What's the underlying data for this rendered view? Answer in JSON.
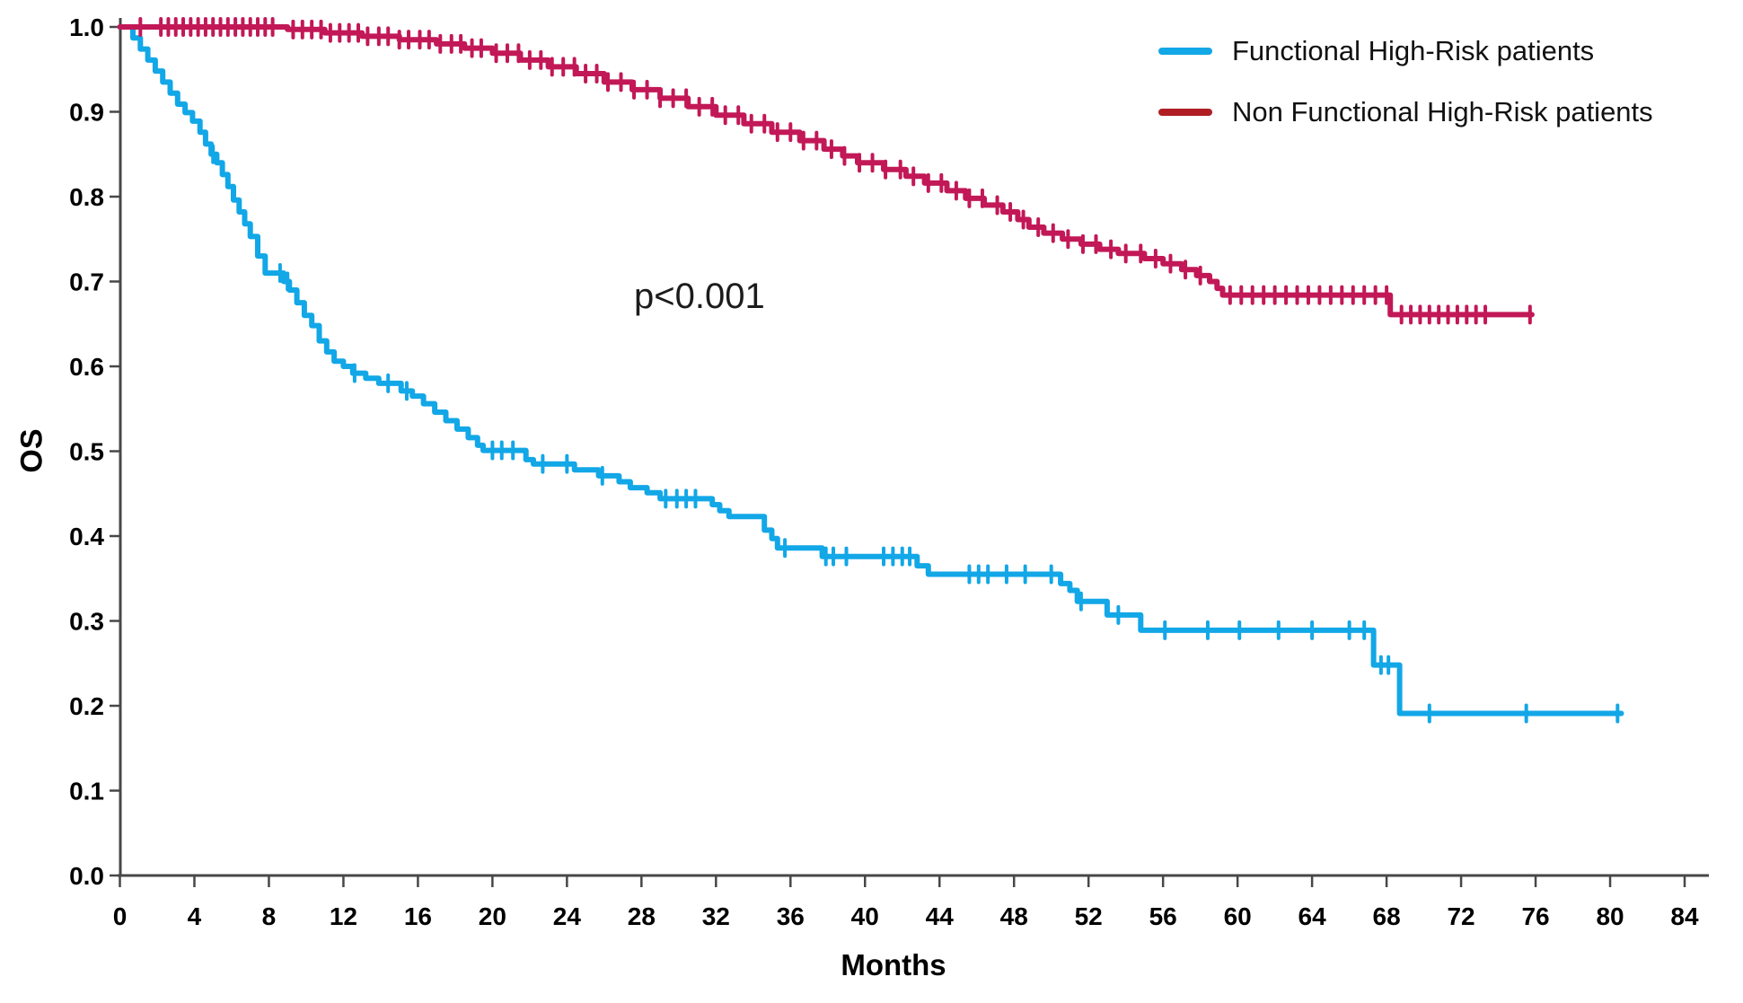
{
  "figure": {
    "background": "#ffffff",
    "p_value_annotation": "p<0.001"
  },
  "axes": {
    "x_label": "Months",
    "y_label": "OS"
  },
  "legend": {
    "items": [
      {
        "label": "Functional High-Risk patients",
        "color": "#12A7E7"
      },
      {
        "label": "Non Functional High-Risk patients",
        "color": "#B01E23"
      }
    ]
  },
  "chart_data": {
    "type": "line",
    "subtype": "kaplan-meier-step",
    "title": "",
    "xlabel": "Months",
    "ylabel": "OS",
    "xlim": [
      0,
      84
    ],
    "ylim": [
      0.0,
      1.0
    ],
    "grid": false,
    "legend_position": "top-right",
    "x_ticks": [
      0,
      4,
      8,
      12,
      16,
      20,
      24,
      28,
      32,
      36,
      40,
      44,
      48,
      52,
      56,
      60,
      64,
      68,
      72,
      76,
      80,
      84
    ],
    "y_tick_labels": [
      "0.0",
      "0.1",
      "0.2",
      "0.3",
      "0.4",
      "0.5",
      "0.6",
      "0.7",
      "0.8",
      "0.9",
      "1.0"
    ],
    "annotations": [
      {
        "text": "p<0.001",
        "x_month": 27.5,
        "y_value": 0.69
      }
    ],
    "series": [
      {
        "name": "Functional High-Risk patients",
        "color": "#12A7E7",
        "step_points": [
          [
            0,
            1.0
          ],
          [
            0.7,
            0.987
          ],
          [
            1.1,
            0.974
          ],
          [
            1.5,
            0.961
          ],
          [
            1.9,
            0.948
          ],
          [
            2.3,
            0.935
          ],
          [
            2.7,
            0.922
          ],
          [
            3.1,
            0.909
          ],
          [
            3.5,
            0.899
          ],
          [
            3.9,
            0.889
          ],
          [
            4.3,
            0.876
          ],
          [
            4.6,
            0.862
          ],
          [
            4.9,
            0.85
          ],
          [
            5.2,
            0.84
          ],
          [
            5.5,
            0.826
          ],
          [
            5.8,
            0.812
          ],
          [
            6.1,
            0.796
          ],
          [
            6.4,
            0.782
          ],
          [
            6.7,
            0.768
          ],
          [
            7.0,
            0.753
          ],
          [
            7.4,
            0.73
          ],
          [
            7.8,
            0.71
          ],
          [
            8.8,
            0.7
          ],
          [
            9.1,
            0.69
          ],
          [
            9.5,
            0.675
          ],
          [
            9.9,
            0.66
          ],
          [
            10.3,
            0.648
          ],
          [
            10.7,
            0.63
          ],
          [
            11.1,
            0.617
          ],
          [
            11.5,
            0.606
          ],
          [
            12.0,
            0.6
          ],
          [
            12.5,
            0.592
          ],
          [
            13.2,
            0.586
          ],
          [
            13.9,
            0.58
          ],
          [
            15.1,
            0.571
          ],
          [
            15.7,
            0.565
          ],
          [
            16.3,
            0.556
          ],
          [
            16.9,
            0.546
          ],
          [
            17.5,
            0.536
          ],
          [
            18.1,
            0.526
          ],
          [
            18.7,
            0.516
          ],
          [
            19.2,
            0.507
          ],
          [
            19.5,
            0.501
          ],
          [
            21.8,
            0.49
          ],
          [
            22.2,
            0.485
          ],
          [
            24.4,
            0.478
          ],
          [
            25.7,
            0.471
          ],
          [
            26.8,
            0.464
          ],
          [
            27.4,
            0.457
          ],
          [
            28.3,
            0.451
          ],
          [
            29.0,
            0.444
          ],
          [
            31.8,
            0.437
          ],
          [
            32.2,
            0.43
          ],
          [
            32.7,
            0.423
          ],
          [
            34.6,
            0.407
          ],
          [
            35.0,
            0.397
          ],
          [
            35.3,
            0.386
          ],
          [
            37.7,
            0.376
          ],
          [
            42.8,
            0.365
          ],
          [
            43.4,
            0.355
          ],
          [
            50.5,
            0.344
          ],
          [
            51.0,
            0.336
          ],
          [
            51.4,
            0.323
          ],
          [
            53.0,
            0.307
          ],
          [
            54.8,
            0.289
          ],
          [
            67.3,
            0.248
          ],
          [
            68.7,
            0.191
          ]
        ],
        "end_month": 80.6,
        "censor_months": [
          5.0,
          8.6,
          9.0,
          12.6,
          14.4,
          15.4,
          20.0,
          20.5,
          21.1,
          22.7,
          24.0,
          25.9,
          29.3,
          29.9,
          30.4,
          30.9,
          35.7,
          37.9,
          38.3,
          39.0,
          41.0,
          41.5,
          42.0,
          42.4,
          45.6,
          46.1,
          46.6,
          47.6,
          48.6,
          50.0,
          51.6,
          53.6,
          56.1,
          58.4,
          60.1,
          62.2,
          64.0,
          66.0,
          66.8,
          67.7,
          68.1,
          70.3,
          75.5,
          80.4
        ]
      },
      {
        "name": "Non Functional High-Risk patients",
        "color": "#C21857",
        "step_points": [
          [
            0,
            1.0
          ],
          [
            9.0,
            0.997
          ],
          [
            11,
            0.993
          ],
          [
            13,
            0.989
          ],
          [
            15,
            0.985
          ],
          [
            17,
            0.98
          ],
          [
            18.5,
            0.975
          ],
          [
            20,
            0.969
          ],
          [
            21.5,
            0.961
          ],
          [
            23,
            0.953
          ],
          [
            24.5,
            0.945
          ],
          [
            26,
            0.935
          ],
          [
            27.5,
            0.926
          ],
          [
            29,
            0.916
          ],
          [
            30.5,
            0.906
          ],
          [
            32,
            0.896
          ],
          [
            33.5,
            0.886
          ],
          [
            35,
            0.876
          ],
          [
            36.5,
            0.866
          ],
          [
            37.8,
            0.856
          ],
          [
            38.8,
            0.848
          ],
          [
            39.6,
            0.84
          ],
          [
            41,
            0.832
          ],
          [
            42.2,
            0.824
          ],
          [
            43.2,
            0.816
          ],
          [
            44.4,
            0.807
          ],
          [
            45.4,
            0.798
          ],
          [
            46.4,
            0.79
          ],
          [
            47.4,
            0.782
          ],
          [
            48.2,
            0.773
          ],
          [
            48.8,
            0.764
          ],
          [
            49.6,
            0.757
          ],
          [
            50.6,
            0.75
          ],
          [
            51.6,
            0.744
          ],
          [
            52.6,
            0.738
          ],
          [
            53.6,
            0.733
          ],
          [
            55.0,
            0.727
          ],
          [
            56.0,
            0.721
          ],
          [
            57.0,
            0.714
          ],
          [
            57.8,
            0.707
          ],
          [
            58.5,
            0.7
          ],
          [
            58.9,
            0.692
          ],
          [
            59.2,
            0.684
          ],
          [
            68.2,
            0.661
          ]
        ],
        "end_month": 75.8,
        "censor_months": [
          1.1,
          2.2,
          2.6,
          3.0,
          3.4,
          3.8,
          4.2,
          4.6,
          5.0,
          5.4,
          5.8,
          6.2,
          6.6,
          7.0,
          7.4,
          7.8,
          8.2,
          9.3,
          9.8,
          10.3,
          10.8,
          11.3,
          11.8,
          12.3,
          12.8,
          13.3,
          13.9,
          14.4,
          15.0,
          15.5,
          16.1,
          16.6,
          17.2,
          17.8,
          18.3,
          18.9,
          19.4,
          20.2,
          20.8,
          21.4,
          22.0,
          22.6,
          23.2,
          23.8,
          24.4,
          25.0,
          25.6,
          26.2,
          26.9,
          27.6,
          28.3,
          29.0,
          29.7,
          30.4,
          31.1,
          31.8,
          32.5,
          33.2,
          33.9,
          34.6,
          35.3,
          36.0,
          36.7,
          37.4,
          38.2,
          38.9,
          39.7,
          40.4,
          41.1,
          41.9,
          42.6,
          43.4,
          44.1,
          44.9,
          45.6,
          46.3,
          47.1,
          47.8,
          48.5,
          49.3,
          50.1,
          50.9,
          51.7,
          52.4,
          53.2,
          54.0,
          54.8,
          55.6,
          56.4,
          57.2,
          58.0,
          59.6,
          60.2,
          60.8,
          61.4,
          62.0,
          62.6,
          63.2,
          63.8,
          64.4,
          65.0,
          65.6,
          66.2,
          66.8,
          67.4,
          68.0,
          68.8,
          69.3,
          69.8,
          70.3,
          70.8,
          71.3,
          71.8,
          72.3,
          72.8,
          73.3,
          75.7
        ]
      }
    ]
  }
}
